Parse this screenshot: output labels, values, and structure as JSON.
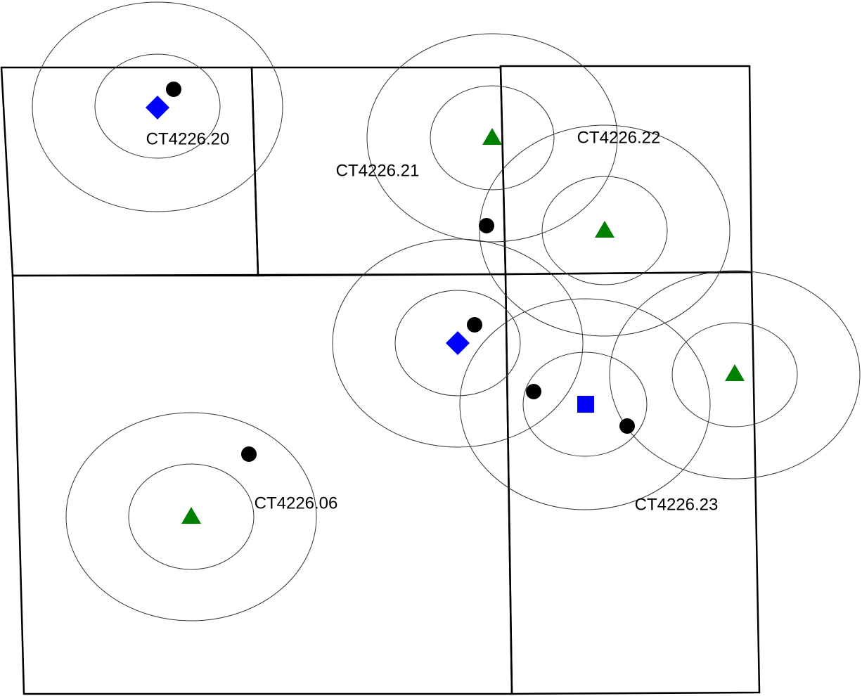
{
  "tracts": [
    {
      "label": "CT4226.20"
    },
    {
      "label": "CT4226.21"
    },
    {
      "label": "CT4226.22"
    },
    {
      "label": "CT4226.06"
    },
    {
      "label": "CT4226.23"
    }
  ]
}
